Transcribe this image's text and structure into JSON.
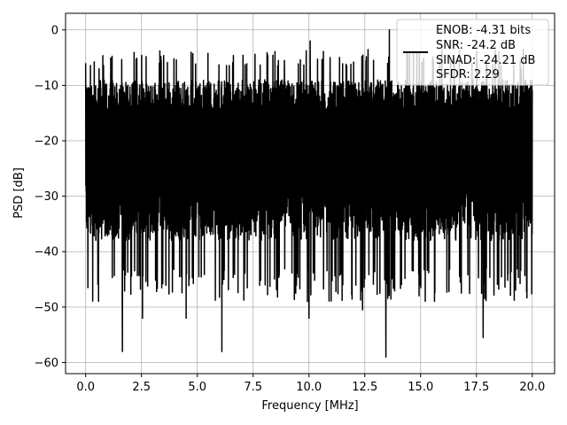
{
  "chart_data": {
    "type": "line",
    "title": "",
    "xlabel": "Frequency [MHz]",
    "ylabel": "PSD [dB]",
    "xlim": [
      -0.9,
      21.0
    ],
    "ylim": [
      -62.0,
      3.0
    ],
    "xticks": [
      0.0,
      2.5,
      5.0,
      7.5,
      10.0,
      12.5,
      15.0,
      17.5,
      20.0
    ],
    "xtick_labels": [
      "0.0",
      "2.5",
      "5.0",
      "7.5",
      "10.0",
      "12.5",
      "15.0",
      "17.5",
      "20.0"
    ],
    "yticks": [
      0,
      -10,
      -20,
      -30,
      -40,
      -50,
      -60
    ],
    "ytick_labels": [
      "0",
      "−10",
      "−20",
      "−30",
      "−40",
      "−50",
      "−60"
    ],
    "grid": true,
    "legend_position": "top-right",
    "legend_lines": [
      "ENOB: -4.31 bits",
      "SNR: -24.2 dB",
      "SINAD: -24.21 dB",
      "SFDR: 2.29"
    ],
    "series": [
      {
        "color": "#000000",
        "x_range": [
          0.0,
          20.0
        ],
        "noise_band": {
          "upper_typical": -13,
          "upper_peak": -5,
          "lower_typical": -33,
          "lower_floor": -46
        },
        "spikes": [
          {
            "x": 0.0,
            "y": -6
          },
          {
            "x": 0.6,
            "y": -7
          },
          {
            "x": 1.65,
            "y": -58
          },
          {
            "x": 2.55,
            "y": -52
          },
          {
            "x": 3.3,
            "y": -6
          },
          {
            "x": 4.5,
            "y": -52
          },
          {
            "x": 6.1,
            "y": -58
          },
          {
            "x": 8.9,
            "y": -5.5
          },
          {
            "x": 10.0,
            "y": -52
          },
          {
            "x": 10.05,
            "y": -2
          },
          {
            "x": 10.95,
            "y": -5
          },
          {
            "x": 12.4,
            "y": -50.5
          },
          {
            "x": 13.45,
            "y": -59
          },
          {
            "x": 13.6,
            "y": 0
          },
          {
            "x": 16.5,
            "y": -6.5
          },
          {
            "x": 17.3,
            "y": -6
          },
          {
            "x": 17.8,
            "y": -55.5
          },
          {
            "x": 18.6,
            "y": -6.5
          },
          {
            "x": 19.5,
            "y": -7
          }
        ]
      }
    ]
  }
}
